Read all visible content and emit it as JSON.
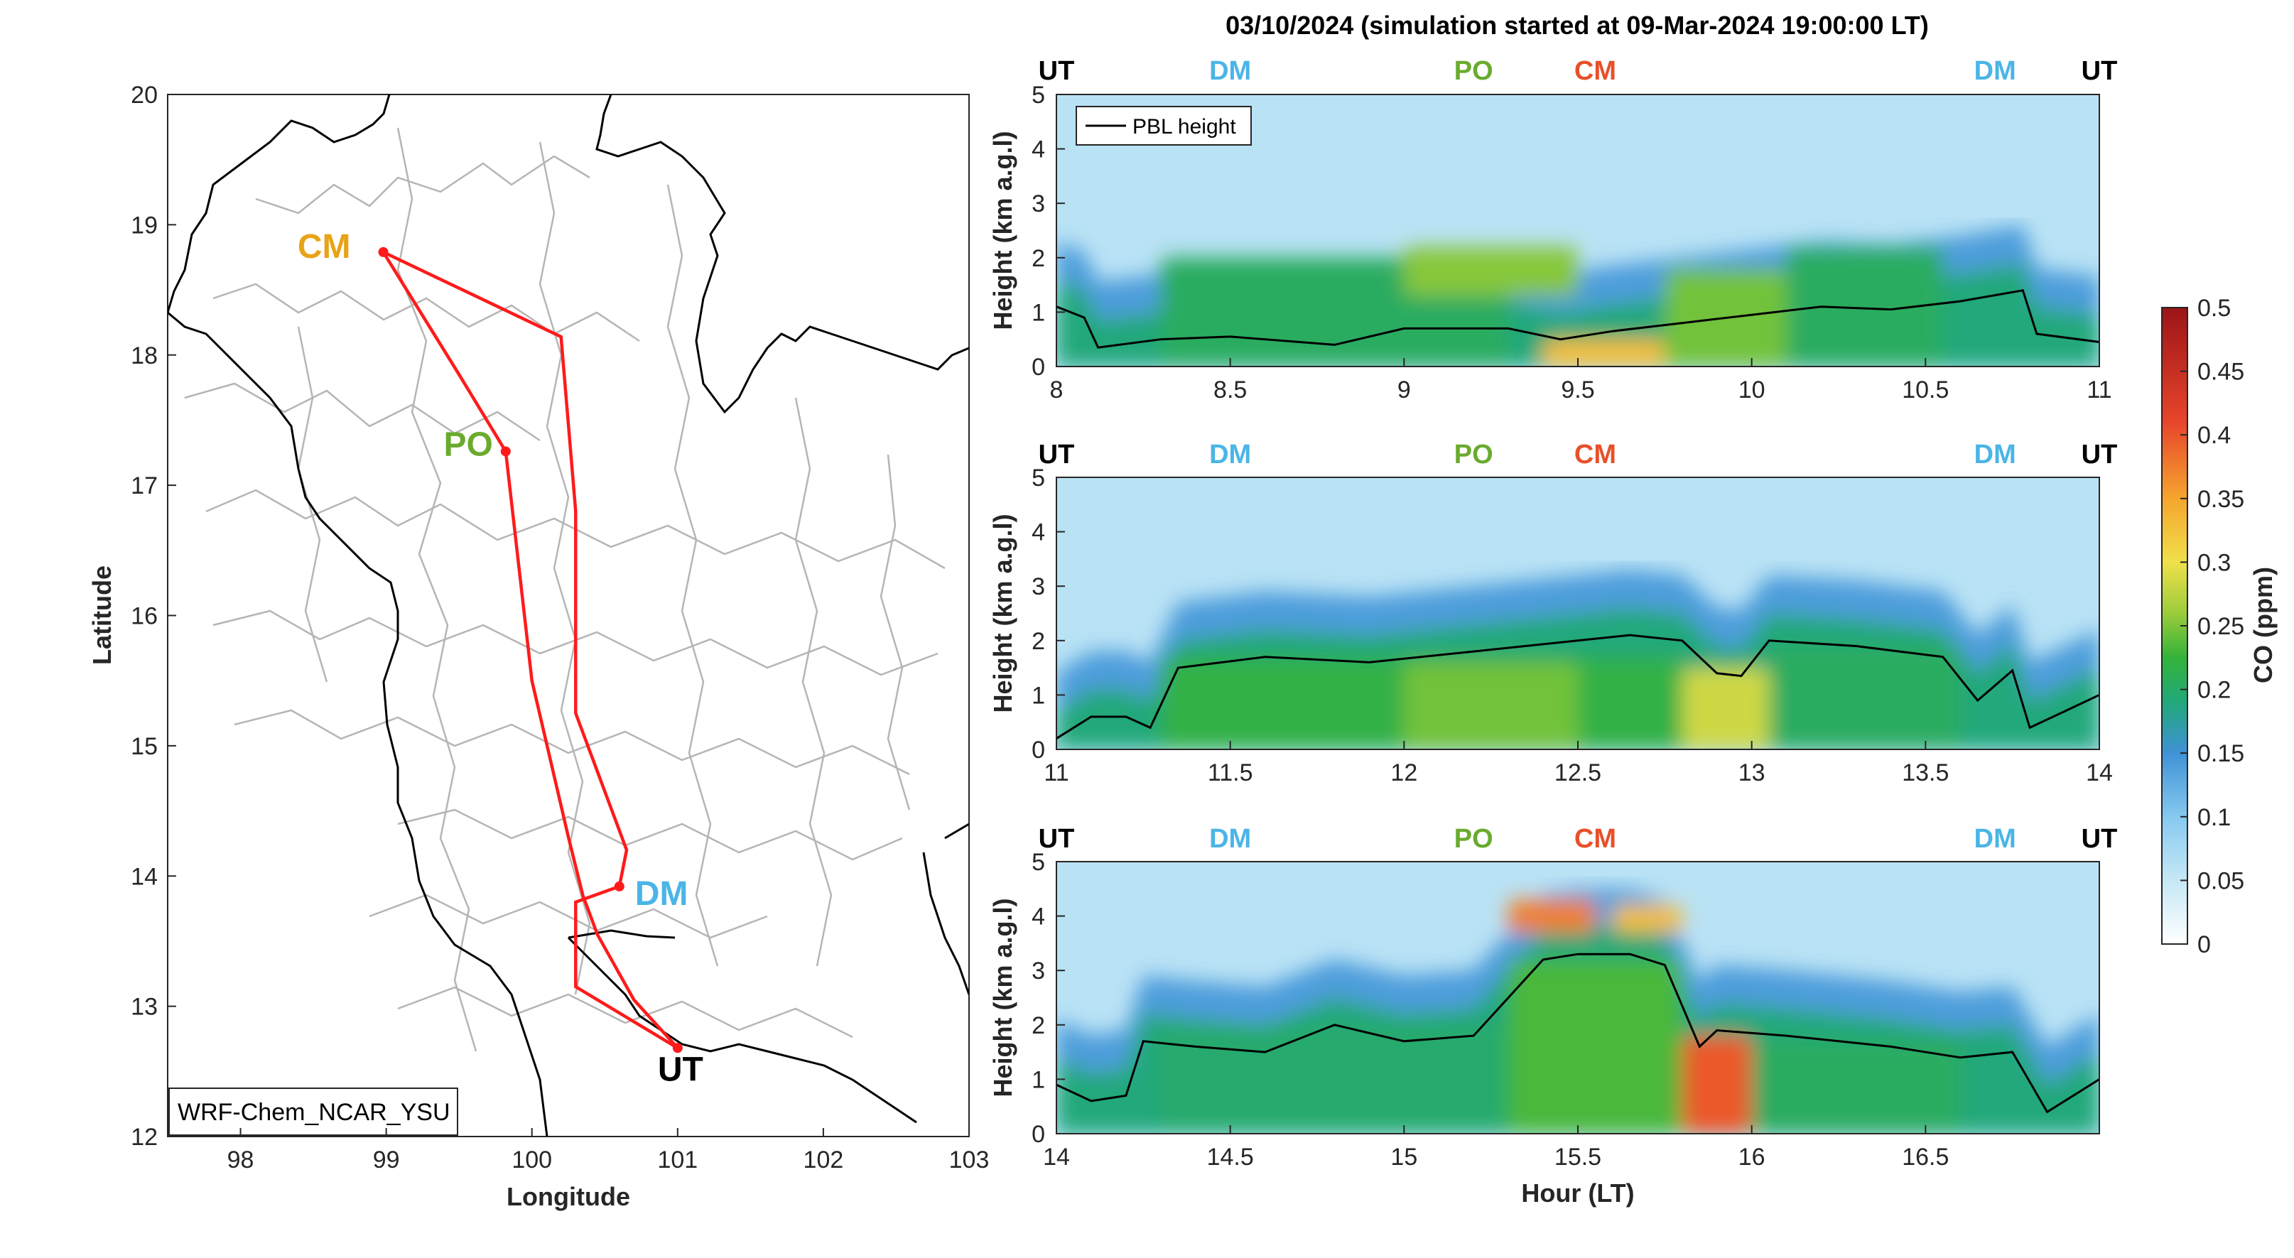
{
  "figure_title": "03/10/2024 (simulation started at 09-Mar-2024 19:00:00 LT)",
  "colors": {
    "route": "#ff1a1a",
    "CM": "#e8a317",
    "PO": "#6aab2f",
    "DM": "#4ab5e6",
    "UT": "#000000",
    "CM_top": "#e8502a",
    "colormap": [
      "#ffffff",
      "#c6e8f6",
      "#86c9ef",
      "#3f92d6",
      "#22a87a",
      "#33b33a",
      "#9ccc3b",
      "#f0e04a",
      "#f5a52e",
      "#e8452b",
      "#9c1418"
    ]
  },
  "chart_data": [
    {
      "type": "map",
      "xlabel": "Longitude",
      "ylabel": "Latitude",
      "xlim": [
        97.5,
        103
      ],
      "ylim": [
        12,
        20
      ],
      "xticks": [
        "98",
        "99",
        "100",
        "101",
        "102",
        "103"
      ],
      "yticks": [
        "12",
        "13",
        "14",
        "15",
        "16",
        "17",
        "18",
        "19",
        "20"
      ],
      "model_label": "WRF-Chem_NCAR_YSU",
      "sites": [
        {
          "name": "CM",
          "lon": 98.98,
          "lat": 18.79
        },
        {
          "name": "PO",
          "lon": 99.82,
          "lat": 17.26
        },
        {
          "name": "DM",
          "lon": 100.6,
          "lat": 13.92
        },
        {
          "name": "UT",
          "lon": 101.0,
          "lat": 12.68
        }
      ],
      "route": [
        [
          [
            98.98,
            18.79
          ],
          [
            100.2,
            18.14
          ],
          [
            100.3,
            16.8
          ],
          [
            100.3,
            15.25
          ],
          [
            100.65,
            14.2
          ],
          [
            100.6,
            13.92
          ]
        ],
        [
          [
            98.98,
            18.79
          ],
          [
            99.5,
            17.85
          ],
          [
            99.82,
            17.26
          ],
          [
            100.0,
            15.5
          ],
          [
            100.25,
            14.3
          ],
          [
            100.35,
            13.85
          ],
          [
            100.45,
            13.55
          ],
          [
            100.7,
            13.05
          ],
          [
            101.0,
            12.68
          ]
        ],
        [
          [
            100.6,
            13.92
          ],
          [
            100.3,
            13.8
          ],
          [
            100.3,
            13.15
          ],
          [
            101.0,
            12.68
          ]
        ]
      ]
    },
    {
      "type": "heatmap",
      "ylabel": "Height (km a.g.l)",
      "xlim": [
        8,
        11
      ],
      "ylim": [
        0,
        5
      ],
      "xticks": [
        "8",
        "8.5",
        "9",
        "9.5",
        "10",
        "10.5",
        "11"
      ],
      "yticks": [
        "0",
        "1",
        "2",
        "3",
        "4",
        "5"
      ],
      "legend": "PBL height",
      "site_markers": [
        {
          "name": "UT",
          "x": 8.0
        },
        {
          "name": "DM",
          "x": 8.5
        },
        {
          "name": "PO",
          "x": 9.2
        },
        {
          "name": "CM",
          "x": 9.55
        },
        {
          "name": "DM",
          "x": 10.7
        },
        {
          "name": "UT",
          "x": 11.0
        }
      ],
      "pbl_height": {
        "x": [
          8.0,
          8.08,
          8.12,
          8.3,
          8.5,
          8.8,
          9.0,
          9.3,
          9.45,
          9.6,
          9.8,
          10.0,
          10.2,
          10.4,
          10.6,
          10.78,
          10.82,
          11.0
        ],
        "y": [
          1.1,
          0.9,
          0.35,
          0.5,
          0.55,
          0.4,
          0.7,
          0.7,
          0.5,
          0.65,
          0.8,
          0.95,
          1.1,
          1.05,
          1.2,
          1.4,
          0.6,
          0.45
        ]
      },
      "color_blobs": [
        {
          "x": [
            8.3,
            9.3
          ],
          "y": [
            0,
            2.0
          ],
          "co": 0.22
        },
        {
          "x": [
            9.0,
            9.5
          ],
          "y": [
            1.3,
            2.2
          ],
          "co": 0.29
        },
        {
          "x": [
            9.4,
            9.75
          ],
          "y": [
            0,
            0.5
          ],
          "co": 0.38
        },
        {
          "x": [
            9.75,
            10.1
          ],
          "y": [
            0,
            1.8
          ],
          "co": 0.28
        },
        {
          "x": [
            10.1,
            10.55
          ],
          "y": [
            0,
            2.2
          ],
          "co": 0.22
        }
      ]
    },
    {
      "type": "heatmap",
      "ylabel": "Height (km a.g.l)",
      "xlim": [
        11,
        14
      ],
      "ylim": [
        0,
        5
      ],
      "xticks": [
        "11",
        "11.5",
        "12",
        "12.5",
        "13",
        "13.5",
        "14"
      ],
      "yticks": [
        "0",
        "1",
        "2",
        "3",
        "4",
        "5"
      ],
      "site_markers": [
        {
          "name": "UT",
          "x": 11.0
        },
        {
          "name": "DM",
          "x": 11.5
        },
        {
          "name": "PO",
          "x": 12.2
        },
        {
          "name": "CM",
          "x": 12.55
        },
        {
          "name": "DM",
          "x": 13.7
        },
        {
          "name": "UT",
          "x": 14.0
        }
      ],
      "pbl_height": {
        "x": [
          11.0,
          11.1,
          11.2,
          11.27,
          11.35,
          11.6,
          11.9,
          12.2,
          12.5,
          12.65,
          12.8,
          12.9,
          12.97,
          13.05,
          13.3,
          13.55,
          13.65,
          13.75,
          13.8,
          14.0
        ],
        "y": [
          0.2,
          0.6,
          0.6,
          0.4,
          1.5,
          1.7,
          1.6,
          1.8,
          2.0,
          2.1,
          2.0,
          1.4,
          1.35,
          2.0,
          1.9,
          1.7,
          0.9,
          1.45,
          0.4,
          1.0
        ]
      },
      "color_blobs": [
        {
          "x": [
            11.3,
            12.8
          ],
          "y": [
            0,
            1.7
          ],
          "co": 0.24
        },
        {
          "x": [
            12.0,
            12.5
          ],
          "y": [
            0,
            1.6
          ],
          "co": 0.28
        },
        {
          "x": [
            12.8,
            13.05
          ],
          "y": [
            0,
            1.5
          ],
          "co": 0.33
        },
        {
          "x": [
            13.05,
            13.6
          ],
          "y": [
            0,
            1.9
          ],
          "co": 0.22
        }
      ]
    },
    {
      "type": "heatmap",
      "ylabel": "Height (km a.g.l)",
      "xlabel": "Hour (LT)",
      "xlim": [
        14,
        17
      ],
      "ylim": [
        0,
        5
      ],
      "xticks": [
        "14",
        "14.5",
        "15",
        "15.5",
        "16",
        "16.5"
      ],
      "yticks": [
        "0",
        "1",
        "2",
        "3",
        "4",
        "5"
      ],
      "site_markers": [
        {
          "name": "UT",
          "x": 14.0
        },
        {
          "name": "DM",
          "x": 14.5
        },
        {
          "name": "PO",
          "x": 15.2
        },
        {
          "name": "CM",
          "x": 15.55
        },
        {
          "name": "DM",
          "x": 16.7
        },
        {
          "name": "UT",
          "x": 17.0
        }
      ],
      "pbl_height": {
        "x": [
          14.0,
          14.1,
          14.2,
          14.25,
          14.4,
          14.6,
          14.8,
          15.0,
          15.2,
          15.4,
          15.5,
          15.65,
          15.75,
          15.85,
          15.9,
          16.1,
          16.4,
          16.6,
          16.75,
          16.85,
          17.0
        ],
        "y": [
          0.9,
          0.6,
          0.7,
          1.7,
          1.6,
          1.5,
          2.0,
          1.7,
          1.8,
          3.2,
          3.3,
          3.3,
          3.1,
          1.6,
          1.9,
          1.8,
          1.6,
          1.4,
          1.5,
          0.4,
          1.0
        ]
      },
      "color_blobs": [
        {
          "x": [
            14.3,
            15.3
          ],
          "y": [
            0,
            2.0
          ],
          "co": 0.21
        },
        {
          "x": [
            15.3,
            15.8
          ],
          "y": [
            0,
            3.2
          ],
          "co": 0.26
        },
        {
          "x": [
            15.3,
            15.55
          ],
          "y": [
            3.7,
            4.3
          ],
          "co": 0.42
        },
        {
          "x": [
            15.6,
            15.8
          ],
          "y": [
            3.7,
            4.2
          ],
          "co": 0.38
        },
        {
          "x": [
            15.8,
            16.0
          ],
          "y": [
            0,
            1.8
          ],
          "co": 0.44
        },
        {
          "x": [
            16.0,
            16.6
          ],
          "y": [
            0,
            1.7
          ],
          "co": 0.22
        }
      ]
    },
    {
      "type": "colorbar",
      "label": "CO (ppm)",
      "range": [
        0,
        0.5
      ],
      "ticks": [
        "0",
        "0.05",
        "0.1",
        "0.15",
        "0.2",
        "0.25",
        "0.3",
        "0.35",
        "0.4",
        "0.45",
        "0.5"
      ]
    }
  ]
}
